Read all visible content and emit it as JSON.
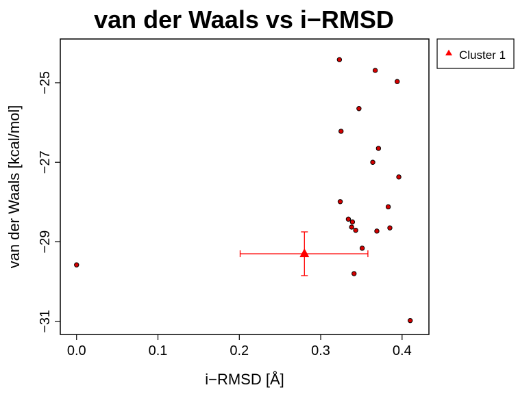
{
  "chart_data": {
    "type": "scatter",
    "title": "van der Waals vs i−RMSD",
    "xlabel": "i−RMSD [Å]",
    "ylabel": "van der Waals [kcal/mol]",
    "xlim": [
      -0.02,
      0.433
    ],
    "ylim": [
      -31.33,
      -23.9
    ],
    "xticks": [
      0.0,
      0.1,
      0.2,
      0.3,
      0.4
    ],
    "xtick_labels": [
      "0.0",
      "0.1",
      "0.2",
      "0.3",
      "0.4"
    ],
    "yticks": [
      -31,
      -29,
      -27,
      -25
    ],
    "ytick_labels": [
      "−31",
      "−29",
      "−27",
      "−25"
    ],
    "grid": false,
    "legend_position": "outside-top-right",
    "series": [
      {
        "marker": "circle",
        "color": "#d40000",
        "points": [
          {
            "x": 0.0,
            "y": -29.58
          },
          {
            "x": 0.323,
            "y": -24.42
          },
          {
            "x": 0.367,
            "y": -24.69
          },
          {
            "x": 0.394,
            "y": -24.97
          },
          {
            "x": 0.347,
            "y": -25.65
          },
          {
            "x": 0.325,
            "y": -26.22
          },
          {
            "x": 0.371,
            "y": -26.65
          },
          {
            "x": 0.364,
            "y": -27.0
          },
          {
            "x": 0.396,
            "y": -27.37
          },
          {
            "x": 0.324,
            "y": -27.99
          },
          {
            "x": 0.383,
            "y": -28.12
          },
          {
            "x": 0.334,
            "y": -28.43
          },
          {
            "x": 0.339,
            "y": -28.5
          },
          {
            "x": 0.338,
            "y": -28.63
          },
          {
            "x": 0.343,
            "y": -28.71
          },
          {
            "x": 0.369,
            "y": -28.73
          },
          {
            "x": 0.385,
            "y": -28.65
          },
          {
            "x": 0.351,
            "y": -29.16
          },
          {
            "x": 0.341,
            "y": -29.8
          },
          {
            "x": 0.41,
            "y": -30.98
          }
        ]
      },
      {
        "name": "Cluster 1",
        "marker": "triangle",
        "color": "#ff0000",
        "points": [
          {
            "x": 0.28,
            "y": -29.3,
            "x_err_low": 0.201,
            "x_err_high": 0.358,
            "y_err_low": -29.85,
            "y_err_high": -28.75
          }
        ]
      }
    ],
    "legend": [
      {
        "label": "Cluster 1",
        "marker": "triangle",
        "color": "#ff0000"
      }
    ]
  }
}
